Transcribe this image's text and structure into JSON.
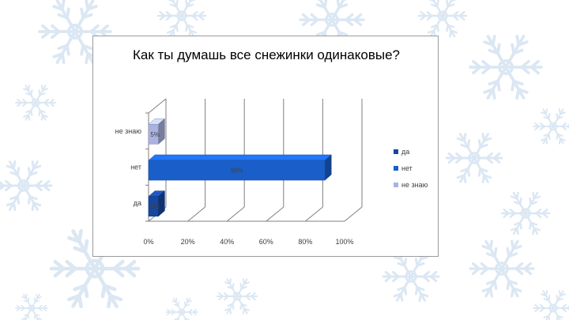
{
  "chart_data": {
    "type": "bar",
    "orientation": "horizontal",
    "title": "Как ты думашь все снежинки одинаковые?",
    "categories": [
      "да",
      "нет",
      "не знаю"
    ],
    "values": [
      5,
      90,
      5
    ],
    "data_labels": [
      "5%",
      "90%",
      "5%"
    ],
    "xlim": [
      0,
      100
    ],
    "x_ticks": [
      "0%",
      "20%",
      "40%",
      "60%",
      "80%",
      "100%"
    ],
    "grid": true,
    "legend": {
      "placement": "right",
      "entries": [
        "да",
        "нет",
        "не знаю"
      ]
    },
    "colors": [
      "#17479e",
      "#1a5fc9",
      "#aab3e0"
    ],
    "style": "3d"
  }
}
